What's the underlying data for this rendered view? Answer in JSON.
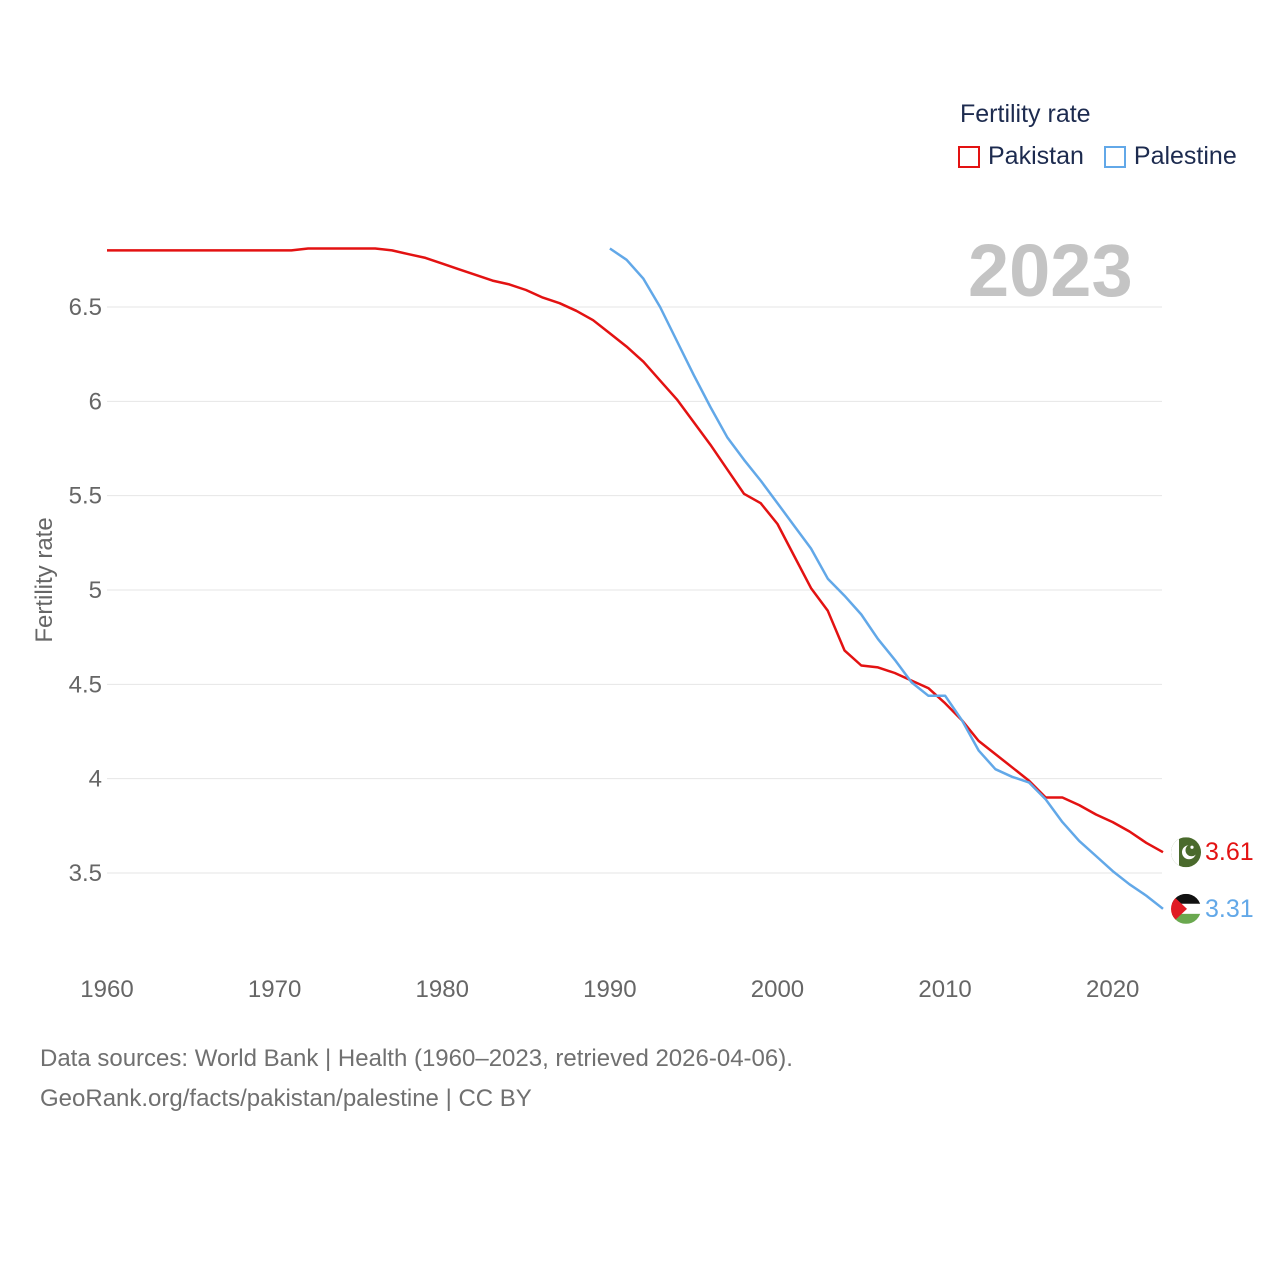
{
  "legend": {
    "title": "Fertility rate",
    "items": [
      {
        "name": "Pakistan",
        "color": "#e31212"
      },
      {
        "name": "Palestine",
        "color": "#62a8e8"
      }
    ]
  },
  "current_year": "2023",
  "footer": {
    "line1": "Data sources: World Bank | Health (1960–2023, retrieved 2026-04-06).",
    "line2": "GeoRank.org/facts/pakistan/palestine | CC BY"
  },
  "chart_data": {
    "type": "line",
    "title": "Fertility rate",
    "xlabel": "",
    "ylabel": "Fertility rate",
    "xlim": [
      1960,
      2023
    ],
    "ylim": [
      3.0,
      6.9
    ],
    "x_ticks": [
      1960,
      1970,
      1980,
      1990,
      2000,
      2010,
      2020
    ],
    "y_ticks": [
      3.5,
      4,
      4.5,
      5,
      5.5,
      6,
      6.5
    ],
    "y_tick_labels": [
      "3.5",
      "4",
      "4.5",
      "5",
      "5.5",
      "6",
      "6.5"
    ],
    "grid": true,
    "legend_position": "top-right",
    "series": [
      {
        "name": "Pakistan",
        "color": "#e31212",
        "end_label": "3.61",
        "x": [
          1960,
          1961,
          1962,
          1963,
          1964,
          1965,
          1966,
          1967,
          1968,
          1969,
          1970,
          1971,
          1972,
          1973,
          1974,
          1975,
          1976,
          1977,
          1978,
          1979,
          1980,
          1981,
          1982,
          1983,
          1984,
          1985,
          1986,
          1987,
          1988,
          1989,
          1990,
          1991,
          1992,
          1993,
          1994,
          1995,
          1996,
          1997,
          1998,
          1999,
          2000,
          2001,
          2002,
          2003,
          2004,
          2005,
          2006,
          2007,
          2008,
          2009,
          2010,
          2011,
          2012,
          2013,
          2014,
          2015,
          2016,
          2017,
          2018,
          2019,
          2020,
          2021,
          2022,
          2023
        ],
        "values": [
          6.8,
          6.8,
          6.8,
          6.8,
          6.8,
          6.8,
          6.8,
          6.8,
          6.8,
          6.8,
          6.8,
          6.8,
          6.81,
          6.81,
          6.81,
          6.81,
          6.81,
          6.8,
          6.78,
          6.76,
          6.73,
          6.7,
          6.67,
          6.64,
          6.62,
          6.59,
          6.55,
          6.52,
          6.48,
          6.43,
          6.36,
          6.29,
          6.21,
          6.11,
          6.01,
          5.89,
          5.77,
          5.64,
          5.51,
          5.46,
          5.35,
          5.18,
          5.01,
          4.89,
          4.68,
          4.6,
          4.59,
          4.56,
          4.52,
          4.48,
          4.4,
          4.31,
          4.2,
          4.13,
          4.06,
          3.99,
          3.9,
          3.9,
          3.86,
          3.81,
          3.77,
          3.72,
          3.66,
          3.61
        ]
      },
      {
        "name": "Palestine",
        "color": "#62a8e8",
        "end_label": "3.31",
        "x": [
          1990,
          1991,
          1992,
          1993,
          1994,
          1995,
          1996,
          1997,
          1998,
          1999,
          2000,
          2001,
          2002,
          2003,
          2004,
          2005,
          2006,
          2007,
          2008,
          2009,
          2010,
          2011,
          2012,
          2013,
          2014,
          2015,
          2016,
          2017,
          2018,
          2019,
          2020,
          2021,
          2022,
          2023
        ],
        "values": [
          6.81,
          6.75,
          6.65,
          6.5,
          6.32,
          6.14,
          5.97,
          5.81,
          5.69,
          5.58,
          5.46,
          5.34,
          5.22,
          5.06,
          4.97,
          4.87,
          4.74,
          4.63,
          4.51,
          4.44,
          4.44,
          4.31,
          4.15,
          4.05,
          4.01,
          3.98,
          3.89,
          3.77,
          3.67,
          3.59,
          3.51,
          3.44,
          3.38,
          3.31
        ]
      }
    ]
  }
}
